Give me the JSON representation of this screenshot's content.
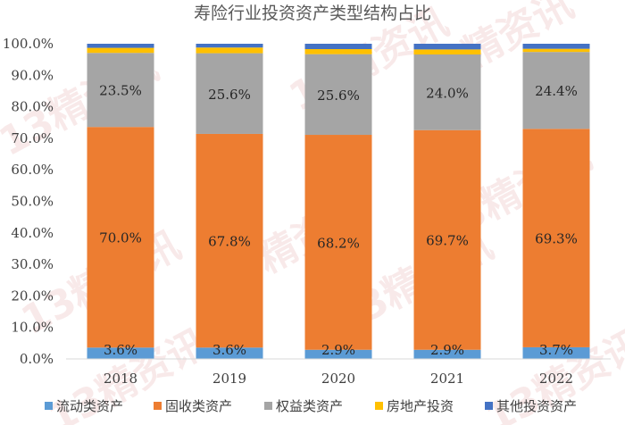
{
  "chart_data": {
    "type": "bar",
    "stacked": true,
    "title": "寿险行业投资资产类型结构占比",
    "xlabel": "",
    "ylabel": "",
    "categories": [
      "2018",
      "2019",
      "2020",
      "2021",
      "2022"
    ],
    "ylim": [
      0,
      100
    ],
    "y_ticks": [
      "0.0%",
      "10.0%",
      "20.0%",
      "30.0%",
      "40.0%",
      "50.0%",
      "60.0%",
      "70.0%",
      "80.0%",
      "90.0%",
      "100.0%"
    ],
    "grid": false,
    "legend_position": "bottom",
    "series": [
      {
        "name": "流动类资产",
        "color": "#5B9BD5",
        "values": [
          3.6,
          3.6,
          2.9,
          2.9,
          3.7
        ],
        "labels": [
          "3.6%",
          "3.6%",
          "2.9%",
          "2.9%",
          "3.7%"
        ]
      },
      {
        "name": "固收类资产",
        "color": "#ED7D31",
        "values": [
          70.0,
          67.8,
          68.2,
          69.7,
          69.3
        ],
        "labels": [
          "70.0%",
          "67.8%",
          "68.2%",
          "69.7%",
          "69.3%"
        ]
      },
      {
        "name": "权益类资产",
        "color": "#A5A5A5",
        "values": [
          23.5,
          25.6,
          25.6,
          24.0,
          24.4
        ],
        "labels": [
          "23.5%",
          "25.6%",
          "25.6%",
          "24.0%",
          "24.4%"
        ]
      },
      {
        "name": "房地产投资",
        "color": "#FFC000",
        "values": [
          1.6,
          1.8,
          1.6,
          1.6,
          1.0
        ],
        "labels": []
      },
      {
        "name": "其他投资资产",
        "color": "#4472C4",
        "values": [
          1.3,
          1.2,
          1.7,
          1.8,
          1.6
        ],
        "labels": []
      }
    ],
    "watermark": "13精资讯"
  }
}
